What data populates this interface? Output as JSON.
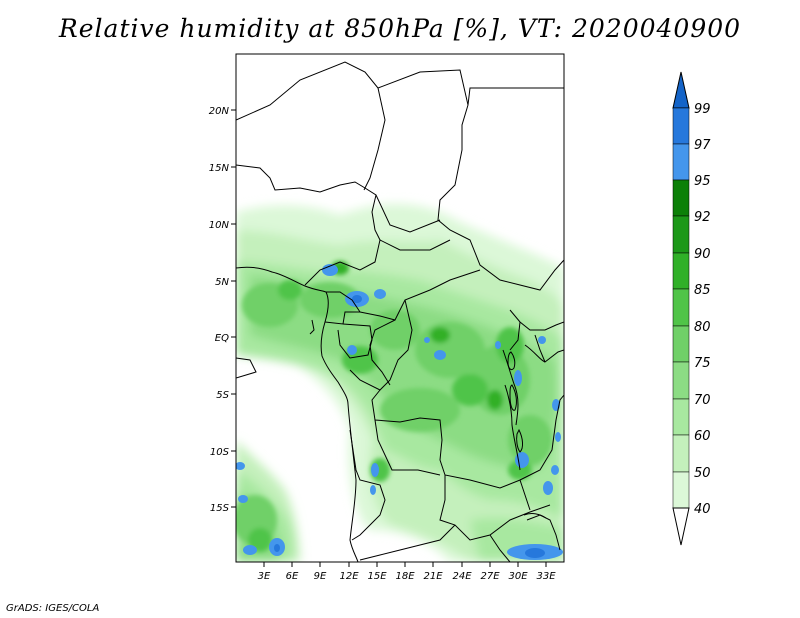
{
  "title": "Relative humidity at 850hPa [%], VT: 2020040900",
  "footer": "GrADS: IGES/COLA",
  "lat_ticks": [
    "20N",
    "15N",
    "10N",
    "5N",
    "EQ",
    "5S",
    "10S",
    "15S"
  ],
  "lon_ticks": [
    "3E",
    "6E",
    "9E",
    "12E",
    "15E",
    "18E",
    "21E",
    "24E",
    "27E",
    "30E",
    "33E"
  ],
  "colorbar": {
    "levels": [
      "40",
      "50",
      "60",
      "70",
      "75",
      "80",
      "85",
      "90",
      "92",
      "95",
      "97",
      "99"
    ],
    "colors": [
      "#f0fff0",
      "#dcf8d8",
      "#c4f0bc",
      "#a8e8a0",
      "#8cdc84",
      "#70d068",
      "#50c448",
      "#30b028",
      "#1c9818",
      "#0c8008",
      "#4496ec",
      "#2678dc",
      "#1464c8"
    ]
  }
}
